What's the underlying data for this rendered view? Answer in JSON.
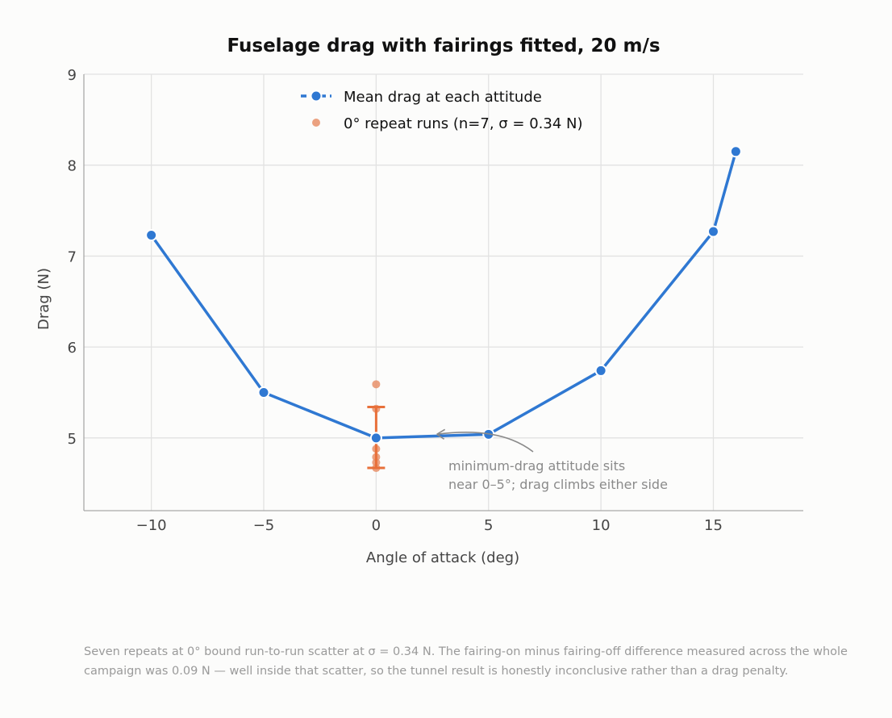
{
  "chart_data": {
    "type": "line",
    "title": "Fuselage drag with fairings fitted, 20 m/s",
    "xlabel": "Angle of attack  (deg)",
    "ylabel": "Drag  (N)",
    "xlim": [
      -13,
      19
    ],
    "ylim": [
      4.2,
      9
    ],
    "xticks": [
      -10,
      -5,
      0,
      5,
      10,
      15
    ],
    "xtick_labels": [
      "−10",
      "−5",
      "0",
      "5",
      "10",
      "15"
    ],
    "yticks": [
      5,
      6,
      7,
      8,
      9
    ],
    "ytick_labels": [
      "5",
      "6",
      "7",
      "8",
      "9"
    ],
    "grid": true,
    "legend_position": "top-center",
    "series": [
      {
        "name": "Mean drag at each attitude",
        "kind": "line-marker",
        "color": "#2f78d2",
        "x": [
          -10,
          -5,
          0,
          5,
          10,
          15,
          16
        ],
        "y": [
          7.23,
          5.5,
          5.0,
          5.04,
          5.74,
          7.27,
          8.15
        ]
      },
      {
        "name": "0° repeat runs  (n=7, σ = 0.34 N)",
        "kind": "scatter",
        "color": "#e8906a",
        "x": [
          0,
          0,
          0,
          0,
          0,
          0,
          0
        ],
        "y": [
          5.59,
          5.32,
          5.02,
          4.88,
          4.79,
          4.73,
          4.67
        ]
      }
    ],
    "error_bar": {
      "x": 0,
      "center": 5.0,
      "low": 4.67,
      "high": 5.34,
      "color": "#e8703a"
    },
    "annotation": {
      "lines": [
        "minimum-drag attitude sits",
        "near 0–5°; drag climbs either side"
      ],
      "target": [
        2.7,
        5.04
      ],
      "color": "#8a8a8a"
    }
  },
  "caption": "Seven repeats at 0° bound run-to-run scatter at σ = 0.34 N. The fairing-on minus fairing-off difference measured across the whole campaign was 0.09 N — well inside that scatter, so the tunnel result is honestly inconclusive rather than a drag penalty."
}
